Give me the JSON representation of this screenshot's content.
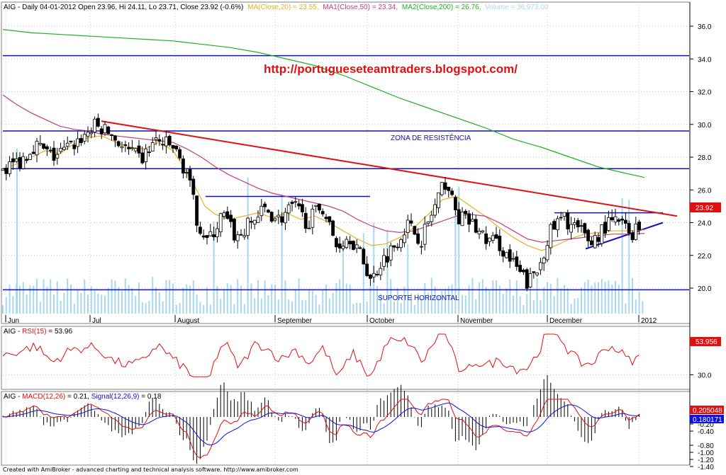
{
  "header": {
    "prefix": "AIG - Daily 04-01-2012 Open 23.96, Hi 24.11, Lo 23.71, Close 23.92 (-0.6%)",
    "ma20": "MA(Close,20) = 23.55,",
    "ma50": "MA1(Close,50) = 23.34,",
    "ma200": "MA2(Close,200) = 26.76,",
    "volume": "Volume = 36,973.00"
  },
  "url_text": "http://portugueseteamtraders.blogspot.com/",
  "resistance_label": "ZONA DE RESISTÊNCIA",
  "support_label": "SUPORTE HORIZONTAL",
  "last_price_label": "23.92",
  "rsi_header": {
    "prefix": "AIG - ",
    "name": "RSI(15)",
    "value": " = 53.96"
  },
  "rsi_last_label": "53.956",
  "macd_header": {
    "prefix": "AIG - ",
    "macd": "MACD(12,26)",
    "macd_value": " = 0.21, ",
    "signal": "Signal(12,26,9)",
    "signal_value": " = 0.18"
  },
  "macd_last_label": "0.205048",
  "signal_last_label": "0.180171",
  "footer": "Created with AmiBroker - advanced charting and technical analysis software. http://www.amibroker.com",
  "colors": {
    "ma20": "#e8b020",
    "ma50": "#c04080",
    "ma200": "#20b020",
    "trend": "#e01010",
    "level": "#1010c0",
    "volume": "#a8d8ec",
    "macd": "#e01010",
    "signal": "#1010e0",
    "price_box": "#e01010",
    "signal_box": "#1010e0"
  },
  "chart_data": [
    {
      "type": "candlestick",
      "x_axis": {
        "tick_labels": [
          "Jun",
          "Jul",
          "August",
          "September",
          "October",
          "November",
          "December",
          "2012"
        ]
      },
      "y_axis": {
        "range": [
          19.0,
          37.0
        ],
        "tick_labels": [
          "20.0",
          "22.0",
          "24.0",
          "26.0",
          "28.0",
          "30.0",
          "32.0",
          "34.0",
          "36.0"
        ]
      },
      "series": [
        {
          "name": "MA(Close,20)",
          "last": 23.55,
          "points": [
            [
              0,
              27.2
            ],
            [
              20,
              27.6
            ],
            [
              40,
              28.0
            ],
            [
              60,
              28.4
            ],
            [
              80,
              28.2
            ],
            [
              100,
              28.8
            ],
            [
              120,
              29.2
            ],
            [
              140,
              29.3
            ],
            [
              160,
              28.9
            ],
            [
              180,
              28.6
            ],
            [
              200,
              28.5
            ],
            [
              220,
              28.9
            ],
            [
              240,
              28.4
            ],
            [
              255,
              27.4
            ],
            [
              270,
              26.3
            ],
            [
              285,
              25.0
            ],
            [
              300,
              24.5
            ],
            [
              320,
              24.2
            ],
            [
              340,
              24.4
            ],
            [
              360,
              24.6
            ],
            [
              380,
              24.3
            ],
            [
              400,
              24.6
            ],
            [
              420,
              24.2
            ],
            [
              440,
              24.4
            ],
            [
              460,
              24.0
            ],
            [
              480,
              23.5
            ],
            [
              500,
              23.0
            ],
            [
              520,
              22.6
            ],
            [
              540,
              22.7
            ],
            [
              560,
              23.1
            ],
            [
              580,
              23.7
            ],
            [
              600,
              24.5
            ],
            [
              620,
              25.4
            ],
            [
              640,
              25.6
            ],
            [
              660,
              25.0
            ],
            [
              680,
              24.4
            ],
            [
              700,
              23.7
            ],
            [
              720,
              23.1
            ],
            [
              740,
              22.6
            ],
            [
              760,
              22.3
            ],
            [
              780,
              22.6
            ],
            [
              800,
              23.0
            ],
            [
              820,
              23.3
            ],
            [
              840,
              23.4
            ],
            [
              860,
              23.5
            ],
            [
              880,
              23.5
            ],
            [
              905,
              23.55
            ]
          ]
        },
        {
          "name": "MA1(Close,50)",
          "last": 23.34,
          "points": [
            [
              0,
              31.8
            ],
            [
              20,
              31.2
            ],
            [
              40,
              30.7
            ],
            [
              60,
              30.3
            ],
            [
              80,
              29.9
            ],
            [
              100,
              29.7
            ],
            [
              120,
              29.6
            ],
            [
              140,
              29.4
            ],
            [
              160,
              29.3
            ],
            [
              180,
              29.2
            ],
            [
              200,
              29.1
            ],
            [
              220,
              29.0
            ],
            [
              240,
              28.9
            ],
            [
              260,
              28.5
            ],
            [
              280,
              28.0
            ],
            [
              300,
              27.4
            ],
            [
              320,
              26.9
            ],
            [
              340,
              26.5
            ],
            [
              360,
              26.1
            ],
            [
              380,
              25.8
            ],
            [
              400,
              25.6
            ],
            [
              420,
              25.4
            ],
            [
              440,
              25.2
            ],
            [
              460,
              25.0
            ],
            [
              480,
              24.7
            ],
            [
              500,
              24.2
            ],
            [
              520,
              23.8
            ],
            [
              540,
              23.5
            ],
            [
              560,
              23.4
            ],
            [
              580,
              23.5
            ],
            [
              600,
              23.8
            ],
            [
              620,
              24.1
            ],
            [
              640,
              24.4
            ],
            [
              660,
              24.5
            ],
            [
              680,
              24.4
            ],
            [
              700,
              24.0
            ],
            [
              720,
              23.5
            ],
            [
              740,
              23.0
            ],
            [
              760,
              22.8
            ],
            [
              780,
              22.9
            ],
            [
              800,
              23.0
            ],
            [
              820,
              23.1
            ],
            [
              840,
              23.2
            ],
            [
              860,
              23.3
            ],
            [
              880,
              23.3
            ],
            [
              905,
              23.34
            ]
          ]
        },
        {
          "name": "MA2(Close,200)",
          "last": 26.76,
          "points": [
            [
              0,
              35.8
            ],
            [
              40,
              35.6
            ],
            [
              80,
              35.5
            ],
            [
              120,
              35.4
            ],
            [
              160,
              35.3
            ],
            [
              200,
              35.2
            ],
            [
              240,
              35.1
            ],
            [
              280,
              34.9
            ],
            [
              320,
              34.7
            ],
            [
              360,
              34.4
            ],
            [
              400,
              34.0
            ],
            [
              440,
              33.6
            ],
            [
              480,
              33.0
            ],
            [
              520,
              32.3
            ],
            [
              560,
              31.6
            ],
            [
              600,
              31.0
            ],
            [
              640,
              30.4
            ],
            [
              680,
              29.8
            ],
            [
              720,
              29.1
            ],
            [
              760,
              28.6
            ],
            [
              800,
              28.0
            ],
            [
              840,
              27.4
            ],
            [
              880,
              27.0
            ],
            [
              905,
              26.76
            ]
          ]
        }
      ],
      "annotations": [
        {
          "kind": "horizontal",
          "value": 34.2
        },
        {
          "kind": "horizontal",
          "value": 29.6
        },
        {
          "kind": "horizontal",
          "value": 27.3
        },
        {
          "kind": "horizontal",
          "value": 19.9
        },
        {
          "kind": "segment",
          "points": [
            [
              290,
              25.6
            ],
            [
              522,
              25.6
            ]
          ]
        },
        {
          "kind": "segment",
          "points": [
            [
              782,
              24.6
            ],
            [
              935,
              24.6
            ]
          ]
        },
        {
          "kind": "trend",
          "points": [
            [
              143,
              30.2
            ],
            [
              955,
              24.4
            ]
          ]
        },
        {
          "kind": "trend",
          "points": [
            [
              826,
              22.4
            ],
            [
              935,
              24.0
            ]
          ]
        }
      ]
    },
    {
      "type": "line",
      "series": [
        {
          "name": "RSI(15)",
          "last": 53.96
        }
      ],
      "y_axis": {
        "tick_labels": [
          "30.0"
        ]
      }
    },
    {
      "type": "line+histogram",
      "series": [
        {
          "name": "MACD(12,26)",
          "last": 0.21
        },
        {
          "name": "Signal(12,26,9)",
          "last": 0.18
        }
      ],
      "y_axis": {
        "tick_labels": [
          "0.20",
          "-0.20",
          "-0.40",
          "-0.80",
          "-1.00",
          "-1.20",
          "-1.40"
        ]
      }
    }
  ]
}
